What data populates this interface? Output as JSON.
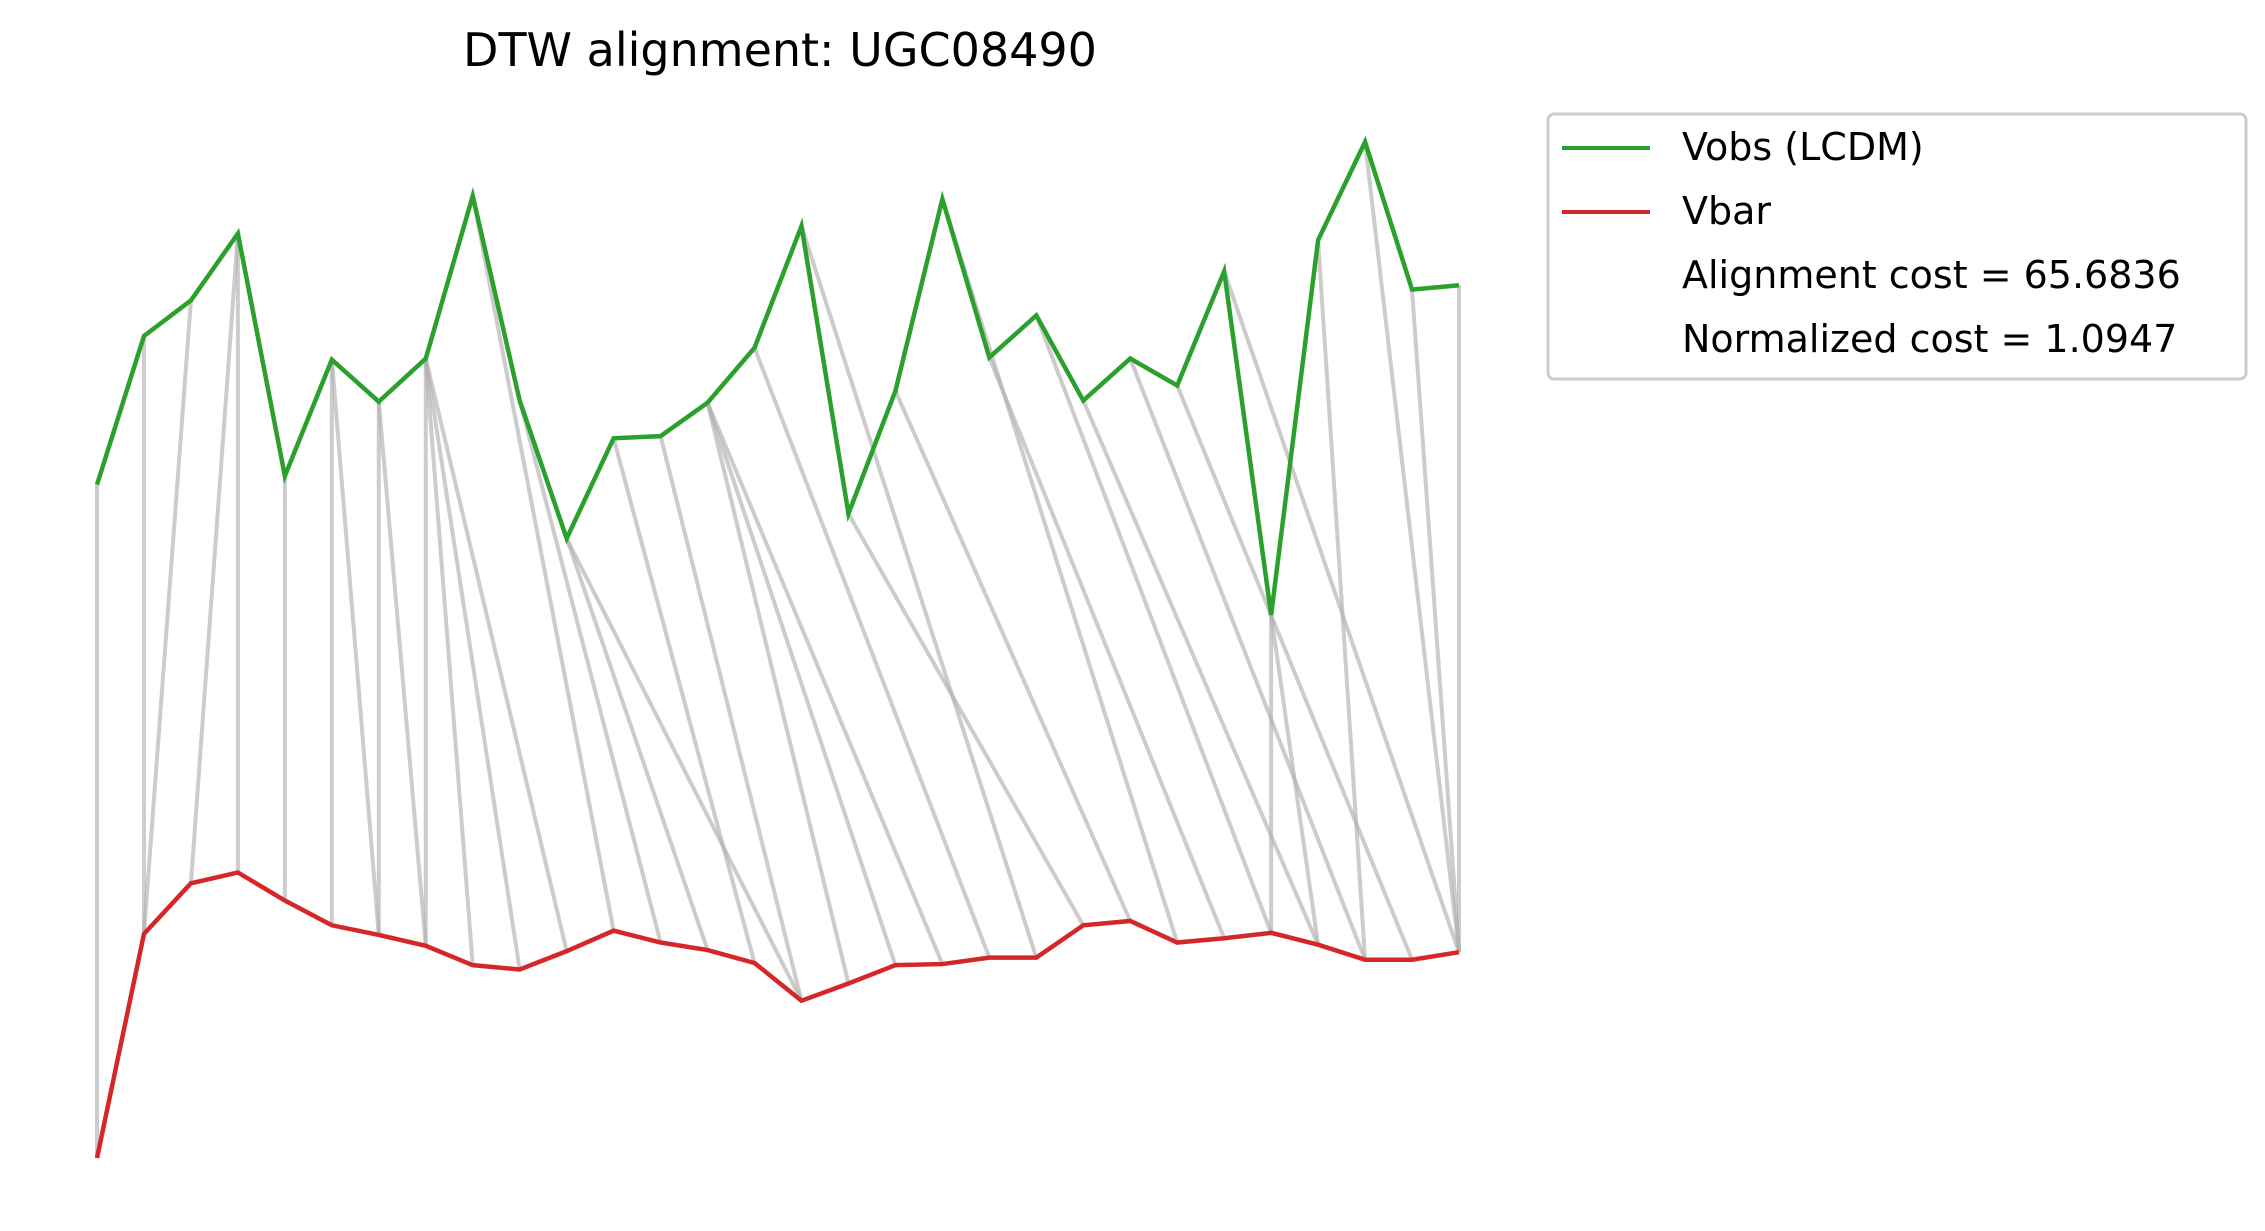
{
  "chart_data": {
    "type": "line",
    "title": "DTW alignment: UGC08490",
    "xlabel": "",
    "ylabel": "",
    "axes_visible": false,
    "grid": false,
    "legend_position": "upper-right-outside",
    "colors": {
      "vobs": "#2ca02c",
      "vbar": "#d62728",
      "alignment": "#b0b0b0"
    },
    "series": [
      {
        "name": "Vobs (LCDM)",
        "color": "#2ca02c",
        "values": [
          1.15,
          2.53,
          2.86,
          3.48,
          1.23,
          2.31,
          1.92,
          2.32,
          3.83,
          1.93,
          0.65,
          1.58,
          1.6,
          1.91,
          2.42,
          3.55,
          0.88,
          2.02,
          3.8,
          2.33,
          2.72,
          1.93,
          2.32,
          2.07,
          3.13,
          -0.06,
          3.42,
          4.33,
          2.96,
          3.0
        ]
      },
      {
        "name": "Vbar",
        "color": "#d62728",
        "values": [
          -5.1,
          -3.02,
          -2.55,
          -2.45,
          -2.71,
          -2.94,
          -3.03,
          -3.13,
          -3.31,
          -3.35,
          -3.18,
          -2.99,
          -3.1,
          -3.17,
          -3.29,
          -3.64,
          -3.48,
          -3.31,
          -3.3,
          -3.24,
          -3.24,
          -2.94,
          -2.9,
          -3.1,
          -3.06,
          -3.01,
          -3.12,
          -3.26,
          -3.26,
          -3.19
        ]
      }
    ],
    "alignment_pairs": [
      [
        0,
        0
      ],
      [
        1,
        1
      ],
      [
        2,
        1
      ],
      [
        3,
        2
      ],
      [
        3,
        3
      ],
      [
        4,
        4
      ],
      [
        5,
        5
      ],
      [
        5,
        6
      ],
      [
        6,
        6
      ],
      [
        6,
        7
      ],
      [
        7,
        7
      ],
      [
        7,
        8
      ],
      [
        7,
        9
      ],
      [
        7,
        10
      ],
      [
        8,
        11
      ],
      [
        9,
        12
      ],
      [
        9,
        13
      ],
      [
        10,
        15
      ],
      [
        11,
        14
      ],
      [
        12,
        15
      ],
      [
        13,
        16
      ],
      [
        13,
        17
      ],
      [
        13,
        18
      ],
      [
        14,
        19
      ],
      [
        15,
        20
      ],
      [
        16,
        21
      ],
      [
        17,
        22
      ],
      [
        18,
        23
      ],
      [
        19,
        24
      ],
      [
        20,
        25
      ],
      [
        21,
        26
      ],
      [
        22,
        27
      ],
      [
        23,
        28
      ],
      [
        24,
        29
      ],
      [
        25,
        25
      ],
      [
        25,
        26
      ],
      [
        26,
        27
      ],
      [
        27,
        29
      ],
      [
        28,
        29
      ],
      [
        29,
        29
      ]
    ],
    "legend_extra": [
      "Alignment cost = 65.6836",
      "Normalized cost = 1.0947"
    ],
    "cost": 65.6836,
    "normalized_cost": 1.0947
  }
}
